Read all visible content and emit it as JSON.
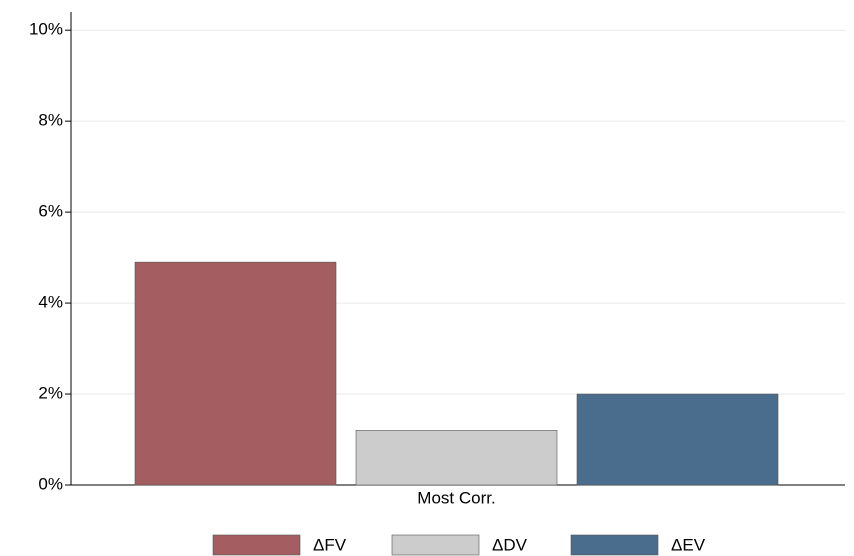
{
  "chart_data": {
    "type": "bar",
    "categories": [
      "Most Corr."
    ],
    "series": [
      {
        "name": "ΔFV",
        "color": "#a45e62",
        "values": [
          4.9
        ]
      },
      {
        "name": "ΔDV",
        "color": "#cccccc",
        "values": [
          1.2
        ]
      },
      {
        "name": "ΔEV",
        "color": "#4a6d8e",
        "values": [
          2.0
        ]
      }
    ],
    "ylim": [
      0,
      10.4
    ],
    "yticks": [
      {
        "value": 0,
        "label": "0%"
      },
      {
        "value": 2,
        "label": "2%"
      },
      {
        "value": 4,
        "label": "4%"
      },
      {
        "value": 6,
        "label": "6%"
      },
      {
        "value": 8,
        "label": "8%"
      },
      {
        "value": 10,
        "label": "10%"
      }
    ],
    "grid": true,
    "legend": "bottom"
  }
}
